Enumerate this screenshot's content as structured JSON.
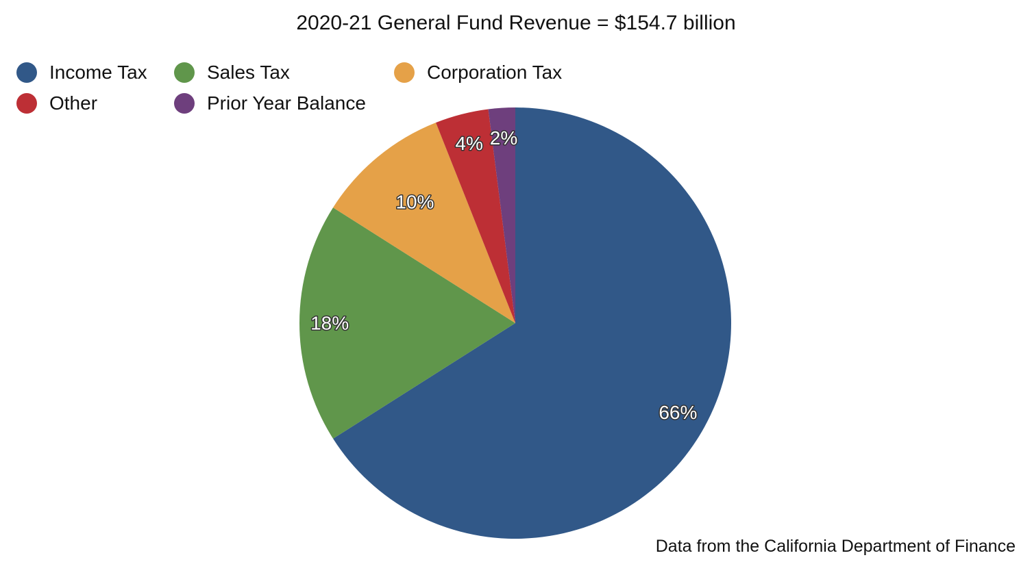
{
  "chart_data": {
    "type": "pie",
    "title": "2020-21 General Fund Revenue = $154.7 billion",
    "source": "Data from the California Department of Finance",
    "legend_position": "top-left",
    "start_angle": "12 o'clock, clockwise",
    "slices": [
      {
        "name": "Income Tax",
        "value": 66,
        "label": "66%",
        "color": "#315888"
      },
      {
        "name": "Sales Tax",
        "value": 18,
        "label": "18%",
        "color": "#60964b"
      },
      {
        "name": "Corporation Tax",
        "value": 10,
        "label": "10%",
        "color": "#e5a148"
      },
      {
        "name": "Other",
        "value": 4,
        "label": "4%",
        "color": "#bd2f35"
      },
      {
        "name": "Prior Year Balance",
        "value": 2,
        "label": "2%",
        "color": "#6e3f7d"
      }
    ]
  }
}
